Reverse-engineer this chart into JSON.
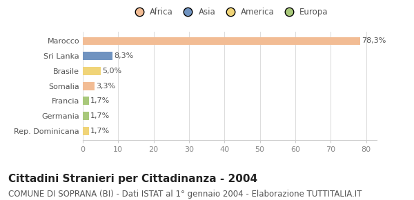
{
  "categories": [
    "Marocco",
    "Sri Lanka",
    "Brasile",
    "Somalia",
    "Francia",
    "Germania",
    "Rep. Dominicana"
  ],
  "values": [
    78.3,
    8.3,
    5.0,
    3.3,
    1.7,
    1.7,
    1.7
  ],
  "labels": [
    "78,3%",
    "8,3%",
    "5,0%",
    "3,3%",
    "1,7%",
    "1,7%",
    "1,7%"
  ],
  "colors": [
    "#f2bc94",
    "#7093c0",
    "#f0d478",
    "#f2bc94",
    "#a8c87a",
    "#a8c87a",
    "#f0d478"
  ],
  "legend_entries": [
    {
      "label": "Africa",
      "color": "#f2bc94"
    },
    {
      "label": "Asia",
      "color": "#7093c0"
    },
    {
      "label": "America",
      "color": "#f0d478"
    },
    {
      "label": "Europa",
      "color": "#a8c87a"
    }
  ],
  "xlim": [
    0,
    83
  ],
  "xticks": [
    0,
    10,
    20,
    30,
    40,
    50,
    60,
    70,
    80
  ],
  "title": "Cittadini Stranieri per Cittadinanza - 2004",
  "subtitle": "COMUNE DI SOPRANA (BI) - Dati ISTAT al 1° gennaio 2004 - Elaborazione TUTTITALIA.IT",
  "background_color": "#ffffff",
  "bar_height": 0.55,
  "title_fontsize": 11,
  "subtitle_fontsize": 8.5,
  "label_fontsize": 8,
  "tick_fontsize": 8,
  "legend_fontsize": 8.5
}
